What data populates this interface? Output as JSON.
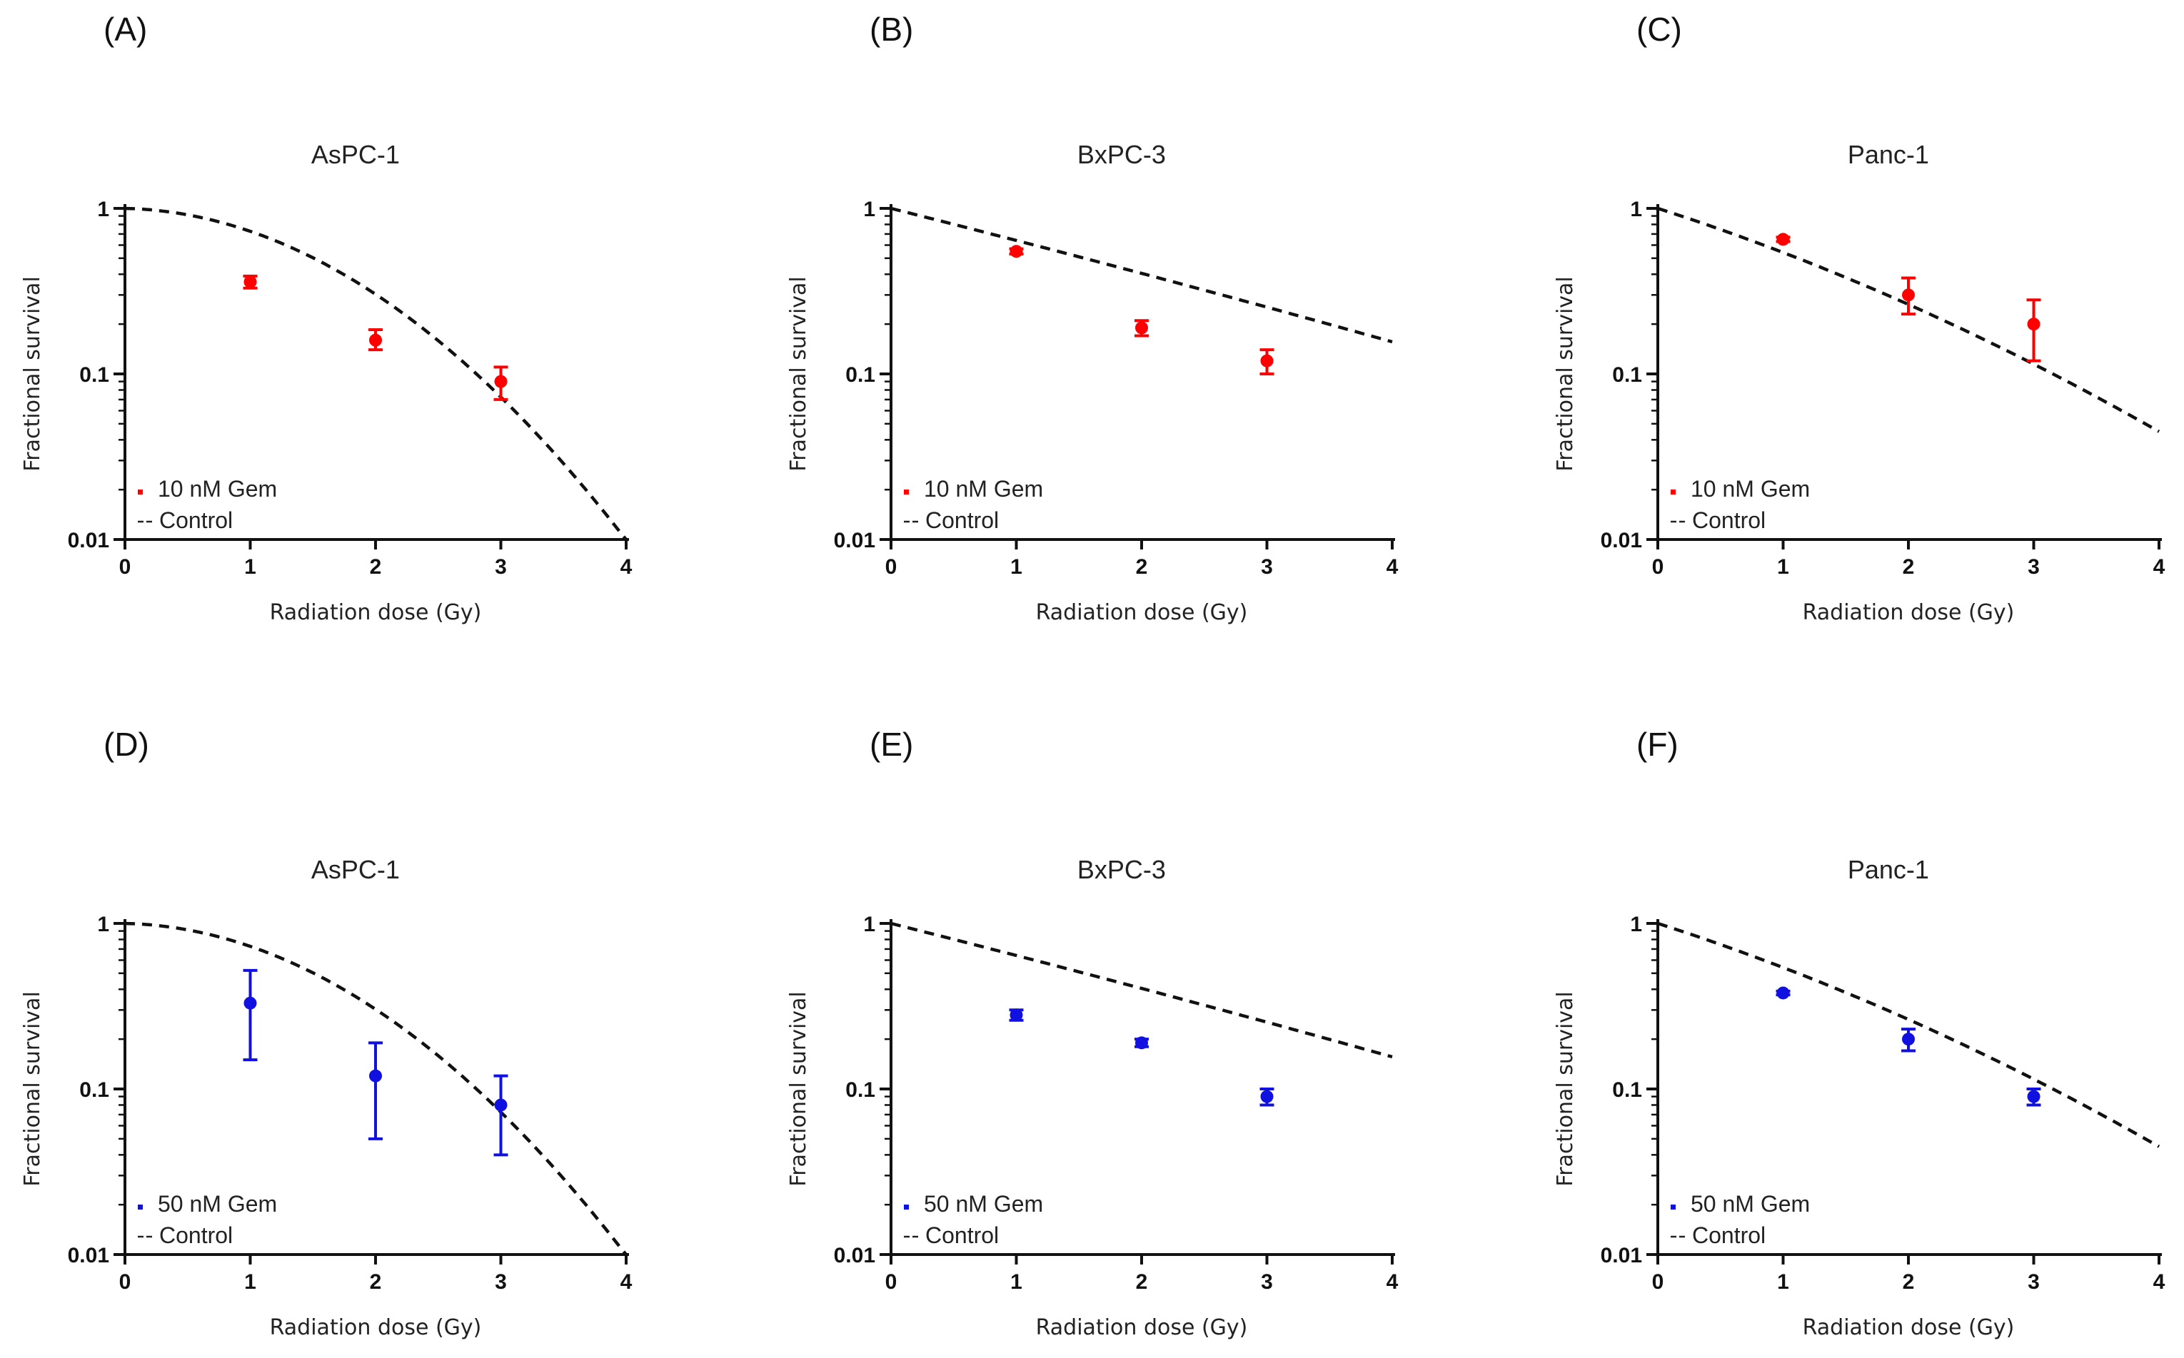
{
  "colors": {
    "gem10": "#ff0000",
    "gem50": "#1010e0",
    "control": "#111111"
  },
  "chart_data": [
    {
      "panel": "(A)",
      "title": "AsPC-1",
      "type": "scatter",
      "xlabel": "Radiation dose (Gy)",
      "ylabel": "Fractional survival",
      "xlim": [
        0,
        4
      ],
      "ylim": [
        0.01,
        1
      ],
      "yscale": "log",
      "xticks": [
        "0",
        "1",
        "2",
        "3",
        "4"
      ],
      "yticks": [
        "0.01",
        "0.1",
        "1"
      ],
      "legend_position": "bottom-left",
      "series": [
        {
          "name": "10 nM Gem",
          "color": "#ff0000",
          "marker": "point",
          "x": [
            1,
            2,
            3
          ],
          "y": [
            0.36,
            0.16,
            0.09
          ],
          "err_low": [
            0.33,
            0.14,
            0.07
          ],
          "err_high": [
            0.39,
            0.185,
            0.11
          ]
        },
        {
          "name": "Control",
          "style": "dashed",
          "model": "lq",
          "alpha": 0.041,
          "beta": 0.278
        }
      ]
    },
    {
      "panel": "(B)",
      "title": "BxPC-3",
      "type": "scatter",
      "xlabel": "Radiation dose (Gy)",
      "ylabel": "Fractional survival",
      "xlim": [
        0,
        4
      ],
      "ylim": [
        0.01,
        1
      ],
      "yscale": "log",
      "xticks": [
        "0",
        "1",
        "2",
        "3",
        "4"
      ],
      "yticks": [
        "0.01",
        "0.1",
        "1"
      ],
      "legend_position": "bottom-left",
      "series": [
        {
          "name": "10 nM Gem",
          "color": "#ff0000",
          "marker": "point",
          "x": [
            1,
            2,
            3
          ],
          "y": [
            0.55,
            0.19,
            0.12
          ],
          "err_low": [
            0.53,
            0.17,
            0.1
          ],
          "err_high": [
            0.57,
            0.21,
            0.14
          ]
        },
        {
          "name": "Control",
          "style": "dashed",
          "model": "lq",
          "alpha": 0.44,
          "beta": 0.006
        }
      ]
    },
    {
      "panel": "(C)",
      "title": "Panc-1",
      "type": "scatter",
      "xlabel": "Radiation dose (Gy)",
      "ylabel": "Fractional survival",
      "xlim": [
        0,
        4
      ],
      "ylim": [
        0.01,
        1
      ],
      "yscale": "log",
      "xticks": [
        "0",
        "1",
        "2",
        "3",
        "4"
      ],
      "yticks": [
        "0.01",
        "0.1",
        "1"
      ],
      "legend_position": "bottom-left",
      "series": [
        {
          "name": "10 nM Gem",
          "color": "#ff0000",
          "marker": "point",
          "x": [
            1,
            2,
            3
          ],
          "y": [
            0.65,
            0.3,
            0.2
          ],
          "err_low": [
            0.63,
            0.23,
            0.12
          ],
          "err_high": [
            0.67,
            0.38,
            0.28
          ]
        },
        {
          "name": "Control",
          "style": "dashed",
          "model": "lq",
          "alpha": 0.56,
          "beta": 0.054
        }
      ]
    },
    {
      "panel": "(D)",
      "title": "AsPC-1",
      "type": "scatter",
      "xlabel": "Radiation dose (Gy)",
      "ylabel": "Fractional survival",
      "xlim": [
        0,
        4
      ],
      "ylim": [
        0.01,
        1
      ],
      "yscale": "log",
      "xticks": [
        "0",
        "1",
        "2",
        "3",
        "4"
      ],
      "yticks": [
        "0.01",
        "0.1",
        "1"
      ],
      "legend_position": "bottom-left",
      "series": [
        {
          "name": "50 nM Gem",
          "color": "#1010e0",
          "marker": "point",
          "x": [
            1,
            2,
            3
          ],
          "y": [
            0.33,
            0.12,
            0.08
          ],
          "err_low": [
            0.15,
            0.05,
            0.04
          ],
          "err_high": [
            0.52,
            0.19,
            0.12
          ]
        },
        {
          "name": "Control",
          "style": "dashed",
          "model": "lq",
          "alpha": 0.041,
          "beta": 0.278
        }
      ]
    },
    {
      "panel": "(E)",
      "title": "BxPC-3",
      "type": "scatter",
      "xlabel": "Radiation dose (Gy)",
      "ylabel": "Fractional survival",
      "xlim": [
        0,
        4
      ],
      "ylim": [
        0.01,
        1
      ],
      "yscale": "log",
      "xticks": [
        "0",
        "1",
        "2",
        "3",
        "4"
      ],
      "yticks": [
        "0.01",
        "0.1",
        "1"
      ],
      "legend_position": "bottom-left",
      "series": [
        {
          "name": "50 nM Gem",
          "color": "#1010e0",
          "marker": "point",
          "x": [
            1,
            2,
            3
          ],
          "y": [
            0.28,
            0.19,
            0.09
          ],
          "err_low": [
            0.26,
            0.18,
            0.08
          ],
          "err_high": [
            0.3,
            0.2,
            0.1
          ]
        },
        {
          "name": "Control",
          "style": "dashed",
          "model": "lq",
          "alpha": 0.44,
          "beta": 0.006
        }
      ]
    },
    {
      "panel": "(F)",
      "title": "Panc-1",
      "type": "scatter",
      "xlabel": "Radiation dose (Gy)",
      "ylabel": "Fractional survival",
      "xlim": [
        0,
        4
      ],
      "ylim": [
        0.01,
        1
      ],
      "yscale": "log",
      "xticks": [
        "0",
        "1",
        "2",
        "3",
        "4"
      ],
      "yticks": [
        "0.01",
        "0.1",
        "1"
      ],
      "legend_position": "bottom-left",
      "series": [
        {
          "name": "50 nM Gem",
          "color": "#1010e0",
          "marker": "point",
          "x": [
            1,
            2,
            3
          ],
          "y": [
            0.38,
            0.2,
            0.09
          ],
          "err_low": [
            0.37,
            0.17,
            0.08
          ],
          "err_high": [
            0.39,
            0.23,
            0.1
          ]
        },
        {
          "name": "Control",
          "style": "dashed",
          "model": "lq",
          "alpha": 0.56,
          "beta": 0.054
        }
      ]
    }
  ]
}
